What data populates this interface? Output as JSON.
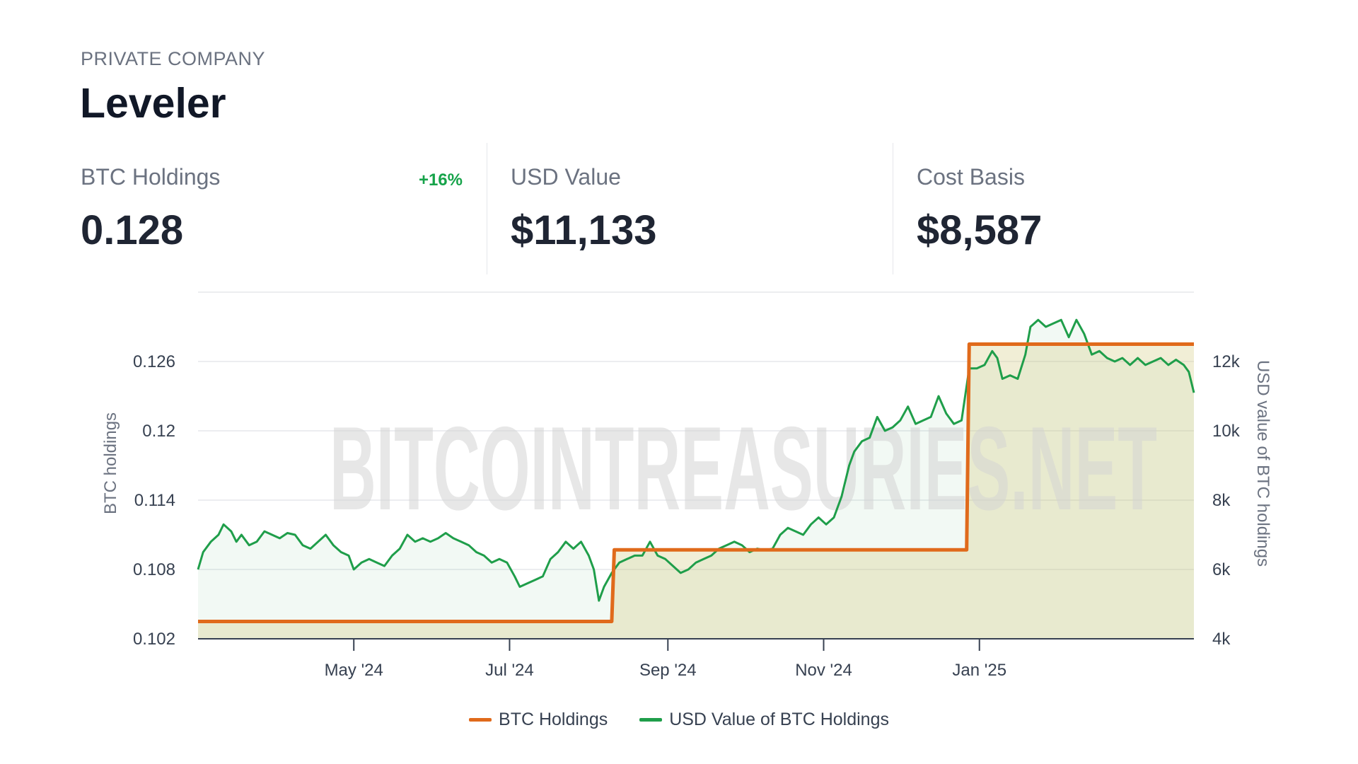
{
  "header": {
    "company_type": "PRIVATE COMPANY",
    "company_name": "Leveler"
  },
  "stats": [
    {
      "label": "BTC Holdings",
      "value": "0.128",
      "change": "+16%"
    },
    {
      "label": "USD Value",
      "value": "$11,133"
    },
    {
      "label": "Cost Basis",
      "value": "$8,587"
    }
  ],
  "colors": {
    "btc": "#e06a1b",
    "usd": "#1f9e4a",
    "change_positive": "#16a34a"
  },
  "chart_data": {
    "type": "line",
    "watermark": "BITCOINTREASURIES.NET",
    "x_tick_labels": [
      "May '24",
      "Jul '24",
      "Sep '24",
      "Nov '24",
      "Jan '25"
    ],
    "y_left": {
      "label": "BTC holdings",
      "ticks": [
        "0.102",
        "0.108",
        "0.114",
        "0.12",
        "0.126"
      ],
      "tick_values": [
        0.102,
        0.108,
        0.114,
        0.12,
        0.126
      ],
      "range": [
        0.102,
        0.132
      ]
    },
    "y_right": {
      "label": "USD value of BTC holdings",
      "ticks": [
        "4k",
        "6k",
        "8k",
        "10k",
        "12k"
      ],
      "tick_values": [
        4000,
        6000,
        8000,
        10000,
        12000
      ],
      "range": [
        4000,
        14000
      ]
    },
    "series": [
      {
        "name": "BTC Holdings",
        "axis": "left",
        "step": true,
        "points": [
          [
            "2024-03-01",
            0.1035
          ],
          [
            "2024-08-10",
            0.1035
          ],
          [
            "2024-08-11",
            0.1097
          ],
          [
            "2024-12-27",
            0.1097
          ],
          [
            "2024-12-28",
            0.1275
          ],
          [
            "2025-03-26",
            0.1275
          ]
        ]
      },
      {
        "name": "USD Value of BTC Holdings",
        "axis": "right",
        "points": [
          [
            "2024-03-01",
            6000
          ],
          [
            "2024-03-03",
            6500
          ],
          [
            "2024-03-06",
            6800
          ],
          [
            "2024-03-09",
            7000
          ],
          [
            "2024-03-11",
            7300
          ],
          [
            "2024-03-14",
            7100
          ],
          [
            "2024-03-16",
            6800
          ],
          [
            "2024-03-18",
            7000
          ],
          [
            "2024-03-21",
            6700
          ],
          [
            "2024-03-24",
            6800
          ],
          [
            "2024-03-27",
            7100
          ],
          [
            "2024-03-30",
            7000
          ],
          [
            "2024-04-02",
            6900
          ],
          [
            "2024-04-05",
            7050
          ],
          [
            "2024-04-08",
            7000
          ],
          [
            "2024-04-11",
            6700
          ],
          [
            "2024-04-14",
            6600
          ],
          [
            "2024-04-17",
            6800
          ],
          [
            "2024-04-20",
            7000
          ],
          [
            "2024-04-23",
            6700
          ],
          [
            "2024-04-26",
            6500
          ],
          [
            "2024-04-29",
            6400
          ],
          [
            "2024-05-01",
            6000
          ],
          [
            "2024-05-04",
            6200
          ],
          [
            "2024-05-07",
            6300
          ],
          [
            "2024-05-10",
            6200
          ],
          [
            "2024-05-13",
            6100
          ],
          [
            "2024-05-16",
            6400
          ],
          [
            "2024-05-19",
            6600
          ],
          [
            "2024-05-22",
            7000
          ],
          [
            "2024-05-25",
            6800
          ],
          [
            "2024-05-28",
            6900
          ],
          [
            "2024-05-31",
            6800
          ],
          [
            "2024-06-03",
            6900
          ],
          [
            "2024-06-06",
            7050
          ],
          [
            "2024-06-09",
            6900
          ],
          [
            "2024-06-12",
            6800
          ],
          [
            "2024-06-15",
            6700
          ],
          [
            "2024-06-18",
            6500
          ],
          [
            "2024-06-21",
            6400
          ],
          [
            "2024-06-24",
            6200
          ],
          [
            "2024-06-27",
            6300
          ],
          [
            "2024-06-30",
            6200
          ],
          [
            "2024-07-03",
            5800
          ],
          [
            "2024-07-05",
            5500
          ],
          [
            "2024-07-08",
            5600
          ],
          [
            "2024-07-11",
            5700
          ],
          [
            "2024-07-14",
            5800
          ],
          [
            "2024-07-17",
            6300
          ],
          [
            "2024-07-20",
            6500
          ],
          [
            "2024-07-23",
            6800
          ],
          [
            "2024-07-26",
            6600
          ],
          [
            "2024-07-29",
            6800
          ],
          [
            "2024-08-01",
            6400
          ],
          [
            "2024-08-03",
            6000
          ],
          [
            "2024-08-05",
            5100
          ],
          [
            "2024-08-07",
            5500
          ],
          [
            "2024-08-10",
            5900
          ],
          [
            "2024-08-13",
            6200
          ],
          [
            "2024-08-16",
            6300
          ],
          [
            "2024-08-19",
            6400
          ],
          [
            "2024-08-22",
            6400
          ],
          [
            "2024-08-25",
            6800
          ],
          [
            "2024-08-28",
            6400
          ],
          [
            "2024-08-31",
            6300
          ],
          [
            "2024-09-03",
            6100
          ],
          [
            "2024-09-06",
            5900
          ],
          [
            "2024-09-09",
            6000
          ],
          [
            "2024-09-12",
            6200
          ],
          [
            "2024-09-15",
            6300
          ],
          [
            "2024-09-18",
            6400
          ],
          [
            "2024-09-21",
            6600
          ],
          [
            "2024-09-24",
            6700
          ],
          [
            "2024-09-27",
            6800
          ],
          [
            "2024-09-30",
            6700
          ],
          [
            "2024-10-03",
            6500
          ],
          [
            "2024-10-06",
            6600
          ],
          [
            "2024-10-09",
            6550
          ],
          [
            "2024-10-12",
            6600
          ],
          [
            "2024-10-15",
            7000
          ],
          [
            "2024-10-18",
            7200
          ],
          [
            "2024-10-21",
            7100
          ],
          [
            "2024-10-24",
            7000
          ],
          [
            "2024-10-27",
            7300
          ],
          [
            "2024-10-30",
            7500
          ],
          [
            "2024-11-02",
            7300
          ],
          [
            "2024-11-05",
            7500
          ],
          [
            "2024-11-08",
            8100
          ],
          [
            "2024-11-11",
            9000
          ],
          [
            "2024-11-13",
            9400
          ],
          [
            "2024-11-16",
            9700
          ],
          [
            "2024-11-19",
            9800
          ],
          [
            "2024-11-22",
            10400
          ],
          [
            "2024-11-25",
            10000
          ],
          [
            "2024-11-28",
            10100
          ],
          [
            "2024-12-01",
            10300
          ],
          [
            "2024-12-04",
            10700
          ],
          [
            "2024-12-07",
            10200
          ],
          [
            "2024-12-10",
            10300
          ],
          [
            "2024-12-13",
            10400
          ],
          [
            "2024-12-16",
            11000
          ],
          [
            "2024-12-19",
            10500
          ],
          [
            "2024-12-22",
            10200
          ],
          [
            "2024-12-25",
            10300
          ],
          [
            "2024-12-28",
            11800
          ],
          [
            "2024-12-31",
            11800
          ],
          [
            "2025-01-03",
            11900
          ],
          [
            "2025-01-06",
            12300
          ],
          [
            "2025-01-08",
            12100
          ],
          [
            "2025-01-10",
            11500
          ],
          [
            "2025-01-13",
            11600
          ],
          [
            "2025-01-16",
            11500
          ],
          [
            "2025-01-19",
            12200
          ],
          [
            "2025-01-21",
            13000
          ],
          [
            "2025-01-24",
            13200
          ],
          [
            "2025-01-27",
            13000
          ],
          [
            "2025-01-30",
            13100
          ],
          [
            "2025-02-02",
            13200
          ],
          [
            "2025-02-05",
            12700
          ],
          [
            "2025-02-08",
            13200
          ],
          [
            "2025-02-11",
            12800
          ],
          [
            "2025-02-14",
            12200
          ],
          [
            "2025-02-17",
            12300
          ],
          [
            "2025-02-20",
            12100
          ],
          [
            "2025-02-23",
            12000
          ],
          [
            "2025-02-26",
            12100
          ],
          [
            "2025-03-01",
            11900
          ],
          [
            "2025-03-04",
            12100
          ],
          [
            "2025-03-07",
            11900
          ],
          [
            "2025-03-10",
            12000
          ],
          [
            "2025-03-13",
            12100
          ],
          [
            "2025-03-16",
            11900
          ],
          [
            "2025-03-19",
            12050
          ],
          [
            "2025-03-22",
            11900
          ],
          [
            "2025-03-24",
            11700
          ],
          [
            "2025-03-26",
            11100
          ]
        ]
      }
    ],
    "grid": true,
    "legend_position": "bottom"
  }
}
